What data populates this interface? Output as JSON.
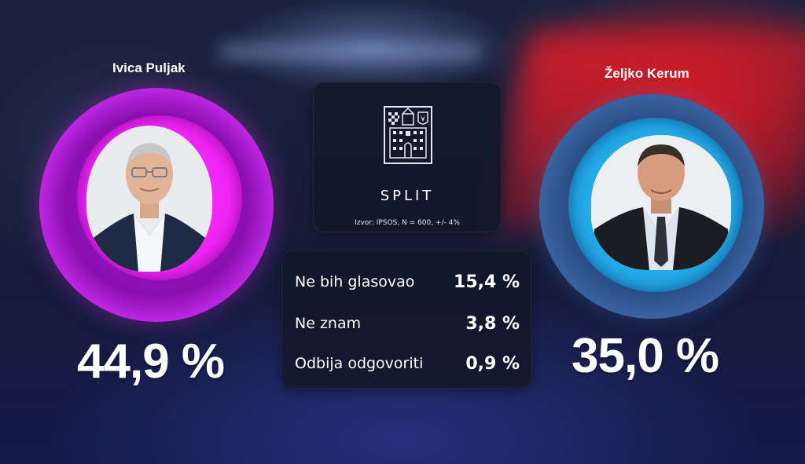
{
  "candidates": [
    {
      "name": "Ivica Puljak",
      "percent": "44,9 %",
      "ring_color": "#ef24f5"
    },
    {
      "name": "Željko Kerum",
      "percent": "35,0 %",
      "ring_color": "#22a8e6"
    }
  ],
  "city": {
    "name": "SPLIT",
    "source": "Izvor: IPSOS, N = 600, +/- 4%"
  },
  "stats": [
    {
      "label": "Ne bih glasovao",
      "value": "15,4 %"
    },
    {
      "label": "Ne znam",
      "value": "3,8 %"
    },
    {
      "label": "Odbija odgovoriti",
      "value": "0,9 %"
    }
  ],
  "icons": {
    "city_logo": "split-coat-of-arms-icon",
    "left_photo": "candidate-portrait",
    "right_photo": "candidate-portrait"
  }
}
